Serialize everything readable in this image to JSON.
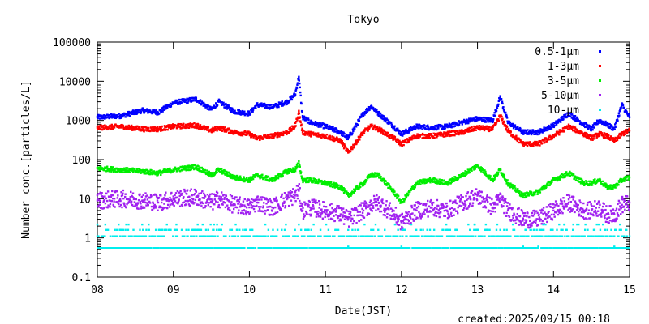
{
  "chart_data": {
    "type": "scatter",
    "title": "Tokyo",
    "xlabel": "Date(JST)",
    "ylabel": "Number conc.[particles/L]",
    "footer": "created:2025/09/15 00:18",
    "yscale": "log",
    "ylim": [
      0.1,
      100000
    ],
    "xlim": [
      8,
      15
    ],
    "xticks": [
      "08",
      "09",
      "10",
      "11",
      "12",
      "13",
      "14",
      "15"
    ],
    "yticks": [
      "100000",
      "10000",
      "1000",
      "100",
      "10",
      "1",
      "0.1"
    ],
    "grid": false,
    "legend_position": "top-right",
    "series": [
      {
        "name": "0.5-1μm",
        "color": "#0000ff",
        "x": [
          8.0,
          8.3,
          8.6,
          8.8,
          9.0,
          9.3,
          9.5,
          9.6,
          9.8,
          10.0,
          10.1,
          10.3,
          10.5,
          10.6,
          10.65,
          10.7,
          10.8,
          11.0,
          11.2,
          11.3,
          11.5,
          11.6,
          11.7,
          11.9,
          12.0,
          12.2,
          12.4,
          12.6,
          12.8,
          13.0,
          13.2,
          13.3,
          13.4,
          13.6,
          13.8,
          14.0,
          14.2,
          14.4,
          14.5,
          14.6,
          14.7,
          14.8,
          14.9,
          15.0
        ],
        "y": [
          1200,
          1300,
          1800,
          1600,
          2800,
          3500,
          1900,
          3000,
          1700,
          1500,
          2500,
          2200,
          3000,
          4500,
          13000,
          1200,
          900,
          700,
          500,
          350,
          1500,
          2300,
          1500,
          700,
          450,
          700,
          650,
          700,
          900,
          1100,
          1000,
          4000,
          900,
          500,
          500,
          750,
          1500,
          800,
          600,
          1000,
          800,
          600,
          2500,
          1200
        ]
      },
      {
        "name": "1-3μm",
        "color": "#ff0000",
        "x": [
          8.0,
          8.3,
          8.6,
          8.8,
          9.0,
          9.3,
          9.5,
          9.6,
          9.8,
          10.0,
          10.1,
          10.3,
          10.5,
          10.6,
          10.65,
          10.7,
          10.8,
          11.0,
          11.2,
          11.3,
          11.5,
          11.6,
          11.7,
          11.9,
          12.0,
          12.2,
          12.4,
          12.6,
          12.8,
          13.0,
          13.2,
          13.3,
          13.4,
          13.6,
          13.8,
          14.0,
          14.2,
          14.4,
          14.5,
          14.6,
          14.7,
          14.8,
          14.9,
          15.0
        ],
        "y": [
          650,
          700,
          600,
          600,
          700,
          750,
          550,
          650,
          500,
          450,
          350,
          400,
          500,
          700,
          1600,
          500,
          450,
          400,
          300,
          150,
          500,
          700,
          600,
          350,
          250,
          400,
          400,
          450,
          500,
          650,
          600,
          1300,
          550,
          250,
          250,
          400,
          700,
          450,
          350,
          450,
          400,
          300,
          450,
          550
        ]
      },
      {
        "name": "3-5μm",
        "color": "#00ee00",
        "x": [
          8.0,
          8.3,
          8.6,
          8.8,
          9.0,
          9.3,
          9.5,
          9.6,
          9.8,
          10.0,
          10.1,
          10.3,
          10.5,
          10.6,
          10.65,
          10.7,
          10.8,
          11.0,
          11.2,
          11.3,
          11.5,
          11.6,
          11.7,
          11.9,
          12.0,
          12.2,
          12.4,
          12.6,
          12.8,
          13.0,
          13.2,
          13.3,
          13.4,
          13.6,
          13.8,
          14.0,
          14.2,
          14.4,
          14.5,
          14.6,
          14.7,
          14.8,
          14.9,
          15.0
        ],
        "y": [
          60,
          55,
          50,
          45,
          55,
          65,
          40,
          55,
          35,
          30,
          40,
          30,
          50,
          55,
          80,
          30,
          30,
          25,
          20,
          12,
          25,
          40,
          40,
          15,
          8,
          25,
          30,
          25,
          40,
          70,
          30,
          55,
          25,
          12,
          15,
          30,
          45,
          25,
          25,
          30,
          20,
          20,
          30,
          35
        ]
      },
      {
        "name": "5-10μm",
        "color": "#a020f0",
        "x": [
          8.0,
          8.3,
          8.6,
          8.8,
          9.0,
          9.3,
          9.5,
          9.6,
          9.8,
          10.0,
          10.1,
          10.3,
          10.5,
          10.6,
          10.65,
          10.7,
          10.8,
          11.0,
          11.2,
          11.3,
          11.5,
          11.6,
          11.7,
          11.9,
          12.0,
          12.2,
          12.4,
          12.6,
          12.8,
          13.0,
          13.2,
          13.3,
          13.4,
          13.6,
          13.8,
          14.0,
          14.2,
          14.4,
          14.5,
          14.6,
          14.7,
          14.8,
          14.9,
          15.0
        ],
        "y": [
          9,
          10,
          9,
          8,
          10,
          11,
          8,
          10,
          7,
          6,
          8,
          6,
          10,
          12,
          16,
          5,
          6,
          5,
          4,
          3,
          5,
          7,
          8,
          4,
          2.5,
          5,
          6,
          5,
          8,
          12,
          6,
          10,
          5,
          3,
          3,
          5,
          8,
          5,
          5,
          6,
          4,
          4,
          7,
          8
        ]
      },
      {
        "name": "10-μm",
        "color": "#00eeee",
        "x": [
          8.0,
          8.3,
          8.6,
          8.8,
          9.0,
          9.3,
          9.5,
          9.6,
          9.8,
          10.0,
          10.1,
          10.3,
          10.5,
          10.6,
          10.65,
          10.7,
          10.8,
          11.0,
          11.2,
          11.3,
          11.5,
          11.6,
          11.7,
          11.9,
          12.0,
          12.2,
          12.4,
          12.6,
          12.8,
          13.0,
          13.2,
          13.3,
          13.4,
          13.6,
          13.8,
          14.0,
          14.2,
          14.4,
          14.5,
          14.6,
          14.7,
          14.8,
          14.9,
          15.0
        ],
        "y": [
          1.1,
          1.1,
          1.6,
          1.1,
          1.1,
          1.1,
          1.1,
          1.6,
          1.1,
          1.1,
          1.1,
          1.1,
          1.1,
          1.6,
          2.2,
          1.1,
          1.1,
          1.1,
          1.1,
          0.6,
          1.1,
          1.6,
          1.1,
          1.1,
          0.6,
          1.1,
          1.1,
          1.1,
          1.1,
          1.6,
          1.1,
          1.6,
          1.1,
          0.6,
          0.6,
          1.1,
          1.1,
          1.1,
          1.1,
          1.1,
          1.1,
          0.6,
          1.1,
          1.1
        ],
        "baseline": 0.55
      }
    ]
  }
}
